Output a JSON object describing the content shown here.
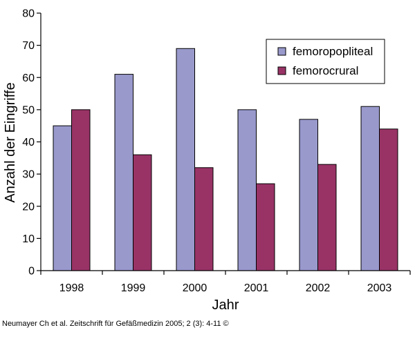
{
  "chart_data": {
    "type": "bar",
    "categories": [
      "1998",
      "1999",
      "2000",
      "2001",
      "2002",
      "2003"
    ],
    "series": [
      {
        "name": "femoropopliteal",
        "color": "#9999cc",
        "values": [
          45,
          61,
          69,
          50,
          47,
          51
        ]
      },
      {
        "name": "femorocrural",
        "color": "#993366",
        "values": [
          50,
          36,
          32,
          27,
          33,
          44
        ]
      }
    ],
    "xlabel": "Jahr",
    "ylabel": "Anzahl der Eingriffe",
    "ylim": [
      0,
      80
    ],
    "yticks": [
      0,
      10,
      20,
      30,
      40,
      50,
      60,
      70,
      80
    ],
    "grid": false,
    "legend_position": "top-right"
  },
  "citation": "Neumayer Ch et al. Zeitschrift für Gefäßmedizin 2005; 2 (3): 4-11 ©"
}
